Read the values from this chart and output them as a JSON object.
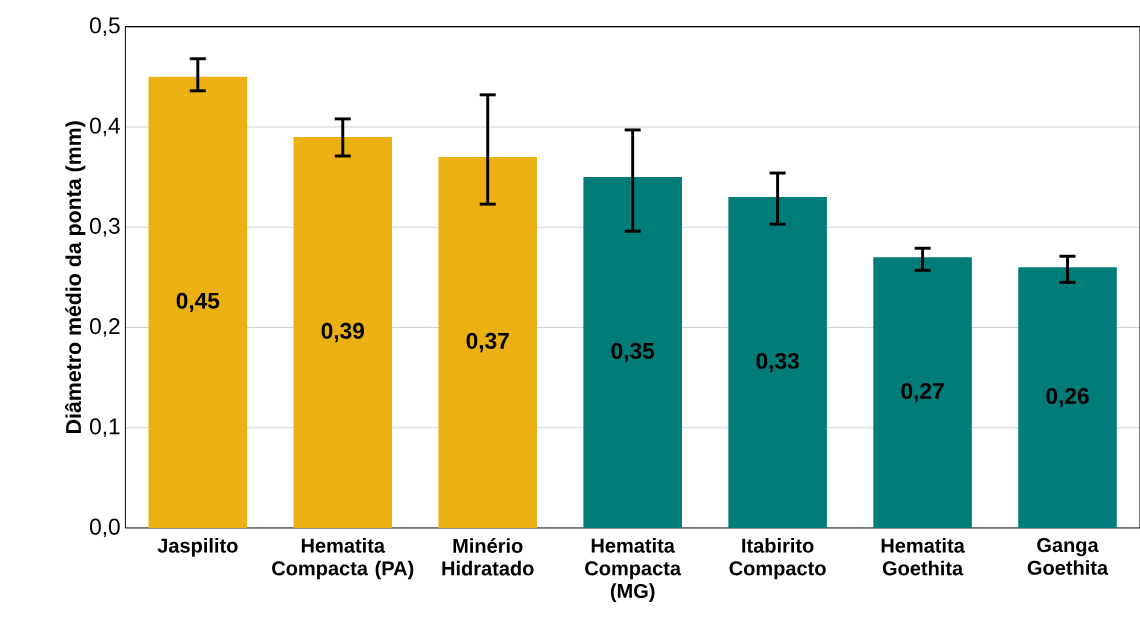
{
  "chart_data": {
    "type": "bar",
    "ylabel": "Diâmetro médio da ponta (mm)",
    "categories": [
      "Jaspilito",
      "Hematita Compacta (PA)",
      "Minério Hidratado",
      "Hematita Compacta (MG)",
      "Itabirito Compacto",
      "Hematita Goethita",
      "Ganga Goethita"
    ],
    "values": [
      0.45,
      0.39,
      0.37,
      0.35,
      0.33,
      0.27,
      0.26
    ],
    "value_labels": [
      "0,45",
      "0,39",
      "0,37",
      "0,35",
      "0,33",
      "0,27",
      "0,26"
    ],
    "colors": [
      "#ebb012",
      "#ebb012",
      "#ebb012",
      "#007d78",
      "#007d78",
      "#007d78",
      "#007d78"
    ],
    "errors": [
      [
        0.436,
        0.468
      ],
      [
        0.371,
        0.408
      ],
      [
        0.323,
        0.432
      ],
      [
        0.296,
        0.397
      ],
      [
        0.303,
        0.354
      ],
      [
        0.257,
        0.279
      ],
      [
        0.245,
        0.271
      ]
    ],
    "ylim": [
      0,
      0.5
    ],
    "yticks": [
      {
        "value": 0,
        "label": "0,0"
      },
      {
        "value": 0.1,
        "label": "0,1"
      },
      {
        "value": 0.2,
        "label": "0,2"
      },
      {
        "value": 0.3,
        "label": "0,3"
      },
      {
        "value": 0.4,
        "label": "0,4"
      },
      {
        "value": 0.5,
        "label": "0,5"
      }
    ],
    "grid": "y"
  }
}
